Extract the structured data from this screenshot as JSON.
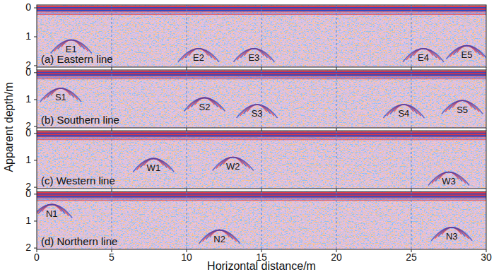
{
  "figure": {
    "xlabel": "Horizontal distance/m",
    "ylabel": "Apparent depth/m"
  },
  "chart_data": [
    {
      "type": "radargram",
      "title": "(a) Eastern line",
      "xlim": [
        0,
        30
      ],
      "ylim": [
        -0.1,
        2.05
      ],
      "xticks": [
        0,
        5,
        10,
        15,
        20,
        25,
        30
      ],
      "yticks": [
        0,
        1,
        2
      ],
      "grid": true,
      "tick_labels": "y",
      "annotations": [
        {
          "text": "E1",
          "x": 2.3,
          "y": 1.45
        },
        {
          "text": "E2",
          "x": 10.8,
          "y": 1.75
        },
        {
          "text": "E3",
          "x": 14.5,
          "y": 1.75
        },
        {
          "text": "E4",
          "x": 25.8,
          "y": 1.75
        },
        {
          "text": "E5",
          "x": 28.7,
          "y": 1.65
        }
      ]
    },
    {
      "type": "radargram",
      "title": "(b) Southern line",
      "xlim": [
        0,
        30
      ],
      "ylim": [
        -0.1,
        2.05
      ],
      "xticks": [
        0,
        5,
        10,
        15,
        20,
        25,
        30
      ],
      "yticks": [
        0,
        1,
        2
      ],
      "grid": true,
      "tick_labels": "y",
      "annotations": [
        {
          "text": "S1",
          "x": 1.6,
          "y": 0.95
        },
        {
          "text": "S2",
          "x": 11.2,
          "y": 1.3
        },
        {
          "text": "S3",
          "x": 14.7,
          "y": 1.55
        },
        {
          "text": "S4",
          "x": 24.5,
          "y": 1.55
        },
        {
          "text": "S5",
          "x": 28.4,
          "y": 1.4
        }
      ]
    },
    {
      "type": "radargram",
      "title": "(c) Western line",
      "xlim": [
        0,
        30
      ],
      "ylim": [
        -0.1,
        2.05
      ],
      "xticks": [
        0,
        5,
        10,
        15,
        20,
        25,
        30
      ],
      "yticks": [
        0,
        1,
        2
      ],
      "grid": true,
      "tick_labels": "y",
      "annotations": [
        {
          "text": "W1",
          "x": 7.8,
          "y": 1.3
        },
        {
          "text": "W2",
          "x": 13.1,
          "y": 1.25
        },
        {
          "text": "W3",
          "x": 27.5,
          "y": 1.8
        }
      ]
    },
    {
      "type": "radargram",
      "title": "(d) Northern line",
      "xlim": [
        0,
        30
      ],
      "ylim": [
        -0.1,
        2.05
      ],
      "xticks": [
        0,
        5,
        10,
        15,
        20,
        25,
        30
      ],
      "yticks": [
        0,
        1,
        2
      ],
      "grid": true,
      "tick_labels": true,
      "annotations": [
        {
          "text": "N1",
          "x": 1.0,
          "y": 0.75
        },
        {
          "text": "N2",
          "x": 12.2,
          "y": 1.7
        },
        {
          "text": "N3",
          "x": 27.7,
          "y": 1.6
        }
      ]
    }
  ]
}
